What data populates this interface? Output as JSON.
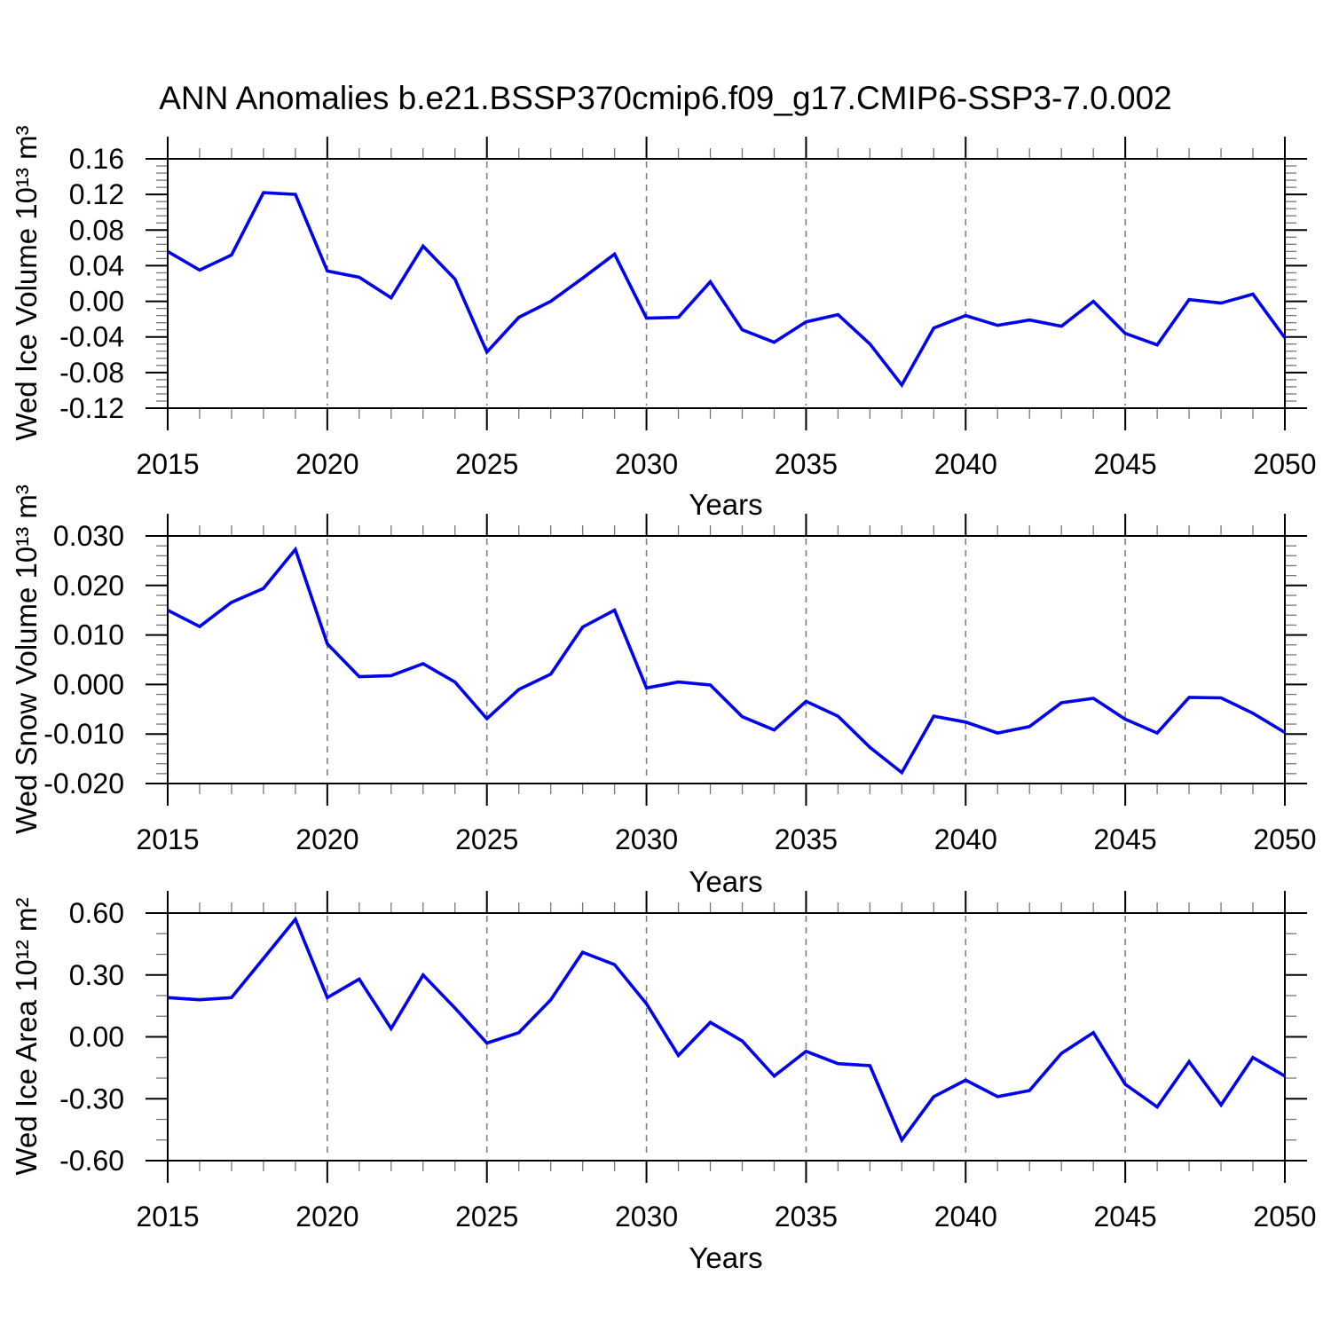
{
  "title": "ANN Anomalies b.e21.BSSP370cmip6.f09_g17.CMIP6-SSP3-7.0.002",
  "colors": {
    "line": "#0000ee",
    "grid": "#808080",
    "axis": "#000000",
    "minor_tick": "#777777"
  },
  "chart_data": {
    "type": "line",
    "x_label": "Years",
    "x": [
      2015,
      2016,
      2017,
      2018,
      2019,
      2020,
      2021,
      2022,
      2023,
      2024,
      2025,
      2026,
      2027,
      2028,
      2029,
      2030,
      2031,
      2032,
      2033,
      2034,
      2035,
      2036,
      2037,
      2038,
      2039,
      2040,
      2041,
      2042,
      2043,
      2044,
      2045,
      2046,
      2047,
      2048,
      2049,
      2050
    ],
    "xlim": [
      2015,
      2050
    ],
    "x_major_tick_labels": [
      "2015",
      "2020",
      "2025",
      "2030",
      "2035",
      "2040",
      "2045",
      "2050"
    ],
    "grid_x": [
      2020,
      2025,
      2030,
      2035,
      2040,
      2045
    ],
    "legend": "none",
    "grid": "vertical-dashed",
    "panels": [
      {
        "ylabel": "Wed Ice Volume 10¹³ m³",
        "ylim": [
          -0.12,
          0.16
        ],
        "y_major": 0.04,
        "y_minor": 0.008,
        "y_tick_labels": [
          "0.16",
          "0.12",
          "0.08",
          "0.04",
          "0.00",
          "-0.04",
          "-0.08",
          "-0.12"
        ],
        "values": [
          0.056,
          0.035,
          0.052,
          0.122,
          0.12,
          0.034,
          0.027,
          0.004,
          0.062,
          0.025,
          -0.057,
          -0.018,
          0.0,
          0.026,
          0.053,
          -0.019,
          -0.018,
          0.022,
          -0.032,
          -0.046,
          -0.023,
          -0.015,
          -0.048,
          -0.094,
          -0.03,
          -0.016,
          -0.027,
          -0.021,
          -0.028,
          0.0,
          -0.036,
          -0.049,
          0.002,
          -0.002,
          0.008,
          -0.041
        ]
      },
      {
        "ylabel": "Wed Snow Volume 10¹³ m³",
        "ylim": [
          -0.02,
          0.03
        ],
        "y_major": 0.01,
        "y_minor": 0.002,
        "y_tick_labels": [
          "0.030",
          "0.020",
          "0.010",
          "0.000",
          "-0.010",
          "-0.020"
        ],
        "values": [
          0.015,
          0.0117,
          0.0166,
          0.0194,
          0.0273,
          0.0082,
          0.0016,
          0.0018,
          0.0042,
          0.0005,
          -0.0069,
          -0.001,
          0.0021,
          0.0116,
          0.015,
          -0.0007,
          0.0005,
          -0.0001,
          -0.0065,
          -0.0092,
          -0.0034,
          -0.0064,
          -0.0127,
          -0.0178,
          -0.0064,
          -0.0076,
          -0.0098,
          -0.0085,
          -0.0037,
          -0.0028,
          -0.007,
          -0.0098,
          -0.0026,
          -0.0027,
          -0.0058,
          -0.0097
        ]
      },
      {
        "ylabel": "Wed Ice Area 10¹² m²",
        "ylim": [
          -0.6,
          0.6
        ],
        "y_major": 0.3,
        "y_minor": 0.1,
        "y_tick_labels": [
          "0.60",
          "0.30",
          "0.00",
          "-0.30",
          "-0.60"
        ],
        "values": [
          0.19,
          0.18,
          0.19,
          0.38,
          0.57,
          0.19,
          0.28,
          0.04,
          0.3,
          0.14,
          -0.03,
          0.02,
          0.18,
          0.41,
          0.35,
          0.16,
          -0.09,
          0.07,
          -0.02,
          -0.19,
          -0.07,
          -0.13,
          -0.14,
          -0.5,
          -0.29,
          -0.21,
          -0.29,
          -0.26,
          -0.08,
          0.02,
          -0.23,
          -0.34,
          -0.12,
          -0.33,
          -0.1,
          -0.19
        ]
      }
    ]
  }
}
